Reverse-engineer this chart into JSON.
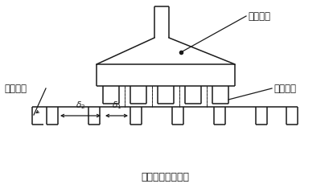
{
  "title": "微调定子小齿结构",
  "label_stator_main": "定子主极",
  "label_rotor_tooth": "转子小齿",
  "label_stator_tooth": "定子小齿",
  "bg_color": "#ffffff",
  "line_color": "#1a1a1a",
  "fig_width": 4.1,
  "fig_height": 2.34,
  "dpi": 100
}
